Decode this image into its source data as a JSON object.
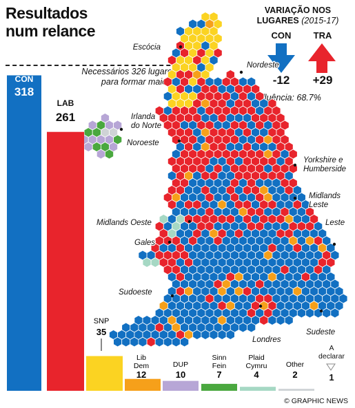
{
  "header": {
    "title_line1": "Resultados",
    "title_line2": "num relance",
    "majority_line1": "Necessários 326 lugares",
    "majority_line2": "para formar maioria"
  },
  "swing": {
    "title_line1": "VARIAÇÃO NOS",
    "title_line2": "LUGARES",
    "years": "(2015-17)",
    "turnout": "Afluência: 68.7%",
    "items": [
      {
        "party": "CON",
        "value": "-12",
        "direction": "down",
        "color": "#1270c2"
      },
      {
        "party": "TRA",
        "value": "+29",
        "direction": "up",
        "color": "#e8242c"
      }
    ]
  },
  "chart_data": {
    "type": "bar",
    "title": "Resultados num relance",
    "categories": [
      "CON",
      "LAB",
      "SNP",
      "Lib Dem",
      "DUP",
      "Sinn Fein",
      "Plaid Cymru",
      "Other"
    ],
    "values": [
      318,
      261,
      35,
      12,
      10,
      7,
      4,
      2
    ],
    "colors": [
      "#1270c2",
      "#e8242c",
      "#fbd322",
      "#f6a01a",
      "#b7a6d6",
      "#4aa83f",
      "#a6d8c4",
      "#cfd3d6"
    ],
    "ylim": [
      0,
      326
    ],
    "majority_threshold": 326,
    "legend": "none"
  },
  "pending": {
    "label_line1": "A",
    "label_line2": "declarar",
    "value": "1"
  },
  "regions": [
    "Escócia",
    "Nordeste",
    "Irlanda",
    "do Norte",
    "Noroeste",
    "Yorkshire e",
    "Humberside",
    "Midlands",
    "Leste",
    "Midlands Oeste",
    "Leste",
    "Gales",
    "Sudoeste",
    "Londres",
    "Sudeste"
  ],
  "credit": "© GRAPHIC NEWS"
}
